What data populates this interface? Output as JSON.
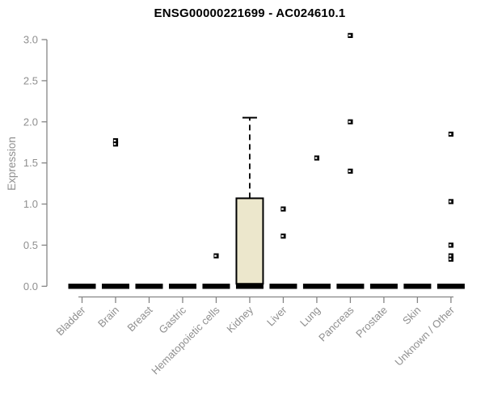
{
  "page": {
    "background": "#ffffff"
  },
  "chart_data": {
    "type": "boxplot",
    "title": "ENSG00000221699 - AC024610.1",
    "xlabel": "",
    "ylabel": "Expression",
    "ylim": [
      0.0,
      3.0
    ],
    "yticks": [
      0.0,
      0.5,
      1.0,
      1.5,
      2.0,
      2.5,
      3.0
    ],
    "ytick_labels": [
      "0.0",
      "0.5",
      "1.0",
      "1.5",
      "2.0",
      "2.5",
      "3.0"
    ],
    "categories": [
      "Bladder",
      "Brain",
      "Breast",
      "Gastric",
      "Hematopoietic cells",
      "Kidney",
      "Liver",
      "Lung",
      "Pancreas",
      "Prostate",
      "Skin",
      "Unknown / Other"
    ],
    "grid": false,
    "legend": null,
    "boxes": [
      {
        "category": "Bladder",
        "q1": 0,
        "median": 0,
        "q3": 0,
        "whisker_low": 0,
        "whisker_high": 0,
        "outliers": []
      },
      {
        "category": "Brain",
        "q1": 0,
        "median": 0,
        "q3": 0,
        "whisker_low": 0,
        "whisker_high": 0,
        "outliers": [
          1.77,
          1.73
        ]
      },
      {
        "category": "Breast",
        "q1": 0,
        "median": 0,
        "q3": 0,
        "whisker_low": 0,
        "whisker_high": 0,
        "outliers": []
      },
      {
        "category": "Gastric",
        "q1": 0,
        "median": 0,
        "q3": 0,
        "whisker_low": 0,
        "whisker_high": 0,
        "outliers": []
      },
      {
        "category": "Hematopoietic cells",
        "q1": 0,
        "median": 0,
        "q3": 0,
        "whisker_low": 0,
        "whisker_high": 0,
        "outliers": [
          0.37
        ]
      },
      {
        "category": "Kidney",
        "q1": 0.03,
        "median": 0,
        "q3": 1.07,
        "whisker_low": 0,
        "whisker_high": 2.05,
        "outliers": []
      },
      {
        "category": "Liver",
        "q1": 0,
        "median": 0,
        "q3": 0,
        "whisker_low": 0,
        "whisker_high": 0,
        "outliers": [
          0.94,
          0.61
        ]
      },
      {
        "category": "Lung",
        "q1": 0,
        "median": 0,
        "q3": 0,
        "whisker_low": 0,
        "whisker_high": 0,
        "outliers": [
          1.56
        ]
      },
      {
        "category": "Pancreas",
        "q1": 0,
        "median": 0,
        "q3": 0,
        "whisker_low": 0,
        "whisker_high": 0,
        "outliers": [
          3.05,
          2.0,
          1.4
        ]
      },
      {
        "category": "Prostate",
        "q1": 0,
        "median": 0,
        "q3": 0,
        "whisker_low": 0,
        "whisker_high": 0,
        "outliers": []
      },
      {
        "category": "Skin",
        "q1": 0,
        "median": 0,
        "q3": 0,
        "whisker_low": 0,
        "whisker_high": 0,
        "outliers": []
      },
      {
        "category": "Unknown / Other",
        "q1": 0,
        "median": 0,
        "q3": 0,
        "whisker_low": 0,
        "whisker_high": 0,
        "outliers": [
          1.85,
          1.03,
          0.5,
          0.37,
          0.33
        ]
      }
    ],
    "colors": {
      "box_fill": "#ece7cc",
      "box_border": "#000000",
      "median": "#000000",
      "outlier": "#000000",
      "axis": "#858585",
      "tick_label": "#8f8f8f",
      "title": "#000000"
    }
  }
}
